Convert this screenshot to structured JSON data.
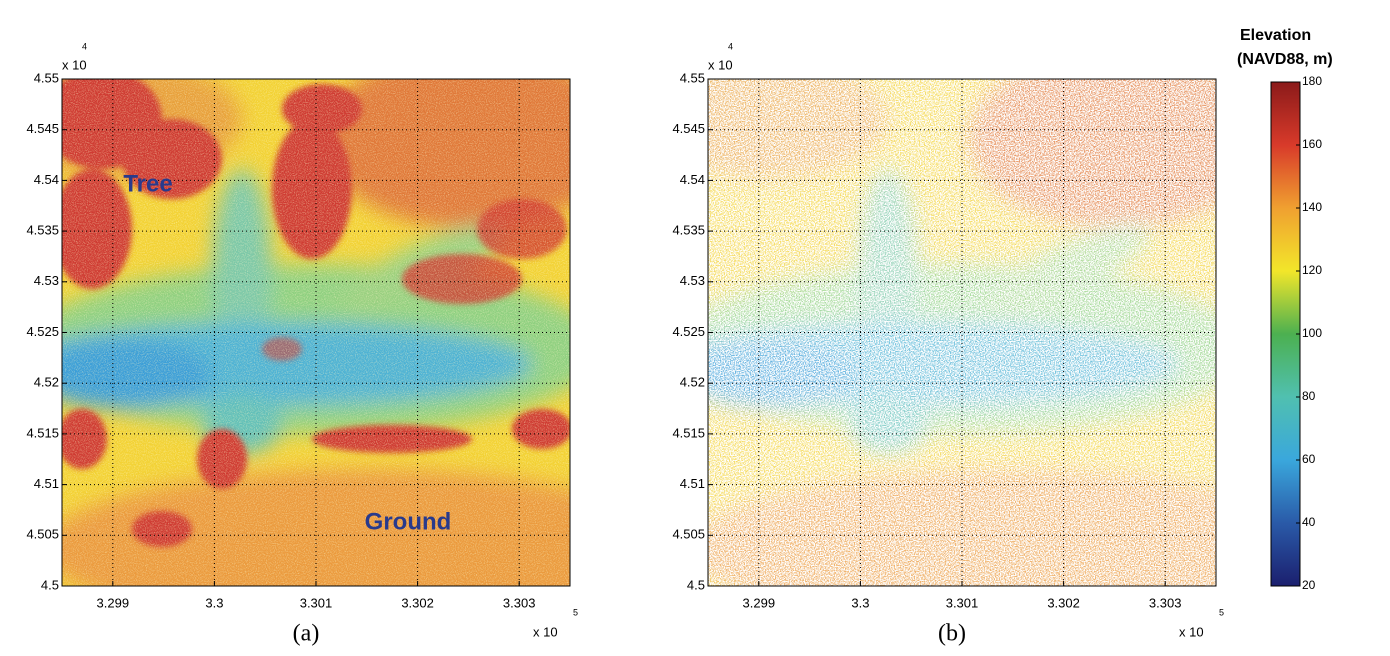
{
  "chart_data": [
    {
      "type": "heatmap",
      "panel_label": "(a)",
      "annotations": [
        "Tree",
        "Ground"
      ],
      "xlim": [
        3.2985,
        3.3035
      ],
      "xticks": [
        3.299,
        3.3,
        3.301,
        3.302,
        3.303
      ],
      "x_multiplier": "x 10",
      "x_exponent": "5",
      "ylim": [
        4.5,
        4.55
      ],
      "yticks": [
        4.5,
        4.505,
        4.51,
        4.515,
        4.52,
        4.525,
        4.53,
        4.535,
        4.54,
        4.545,
        4.55
      ],
      "y_multiplier": "x 10",
      "y_exponent": "4",
      "grid": true
    },
    {
      "type": "heatmap",
      "panel_label": "(b)",
      "annotations": [],
      "xlim": [
        3.2985,
        3.3035
      ],
      "xticks": [
        3.299,
        3.3,
        3.301,
        3.302,
        3.303
      ],
      "x_multiplier": "x 10",
      "x_exponent": "5",
      "ylim": [
        4.5,
        4.55
      ],
      "yticks": [
        4.5,
        4.505,
        4.51,
        4.515,
        4.52,
        4.525,
        4.53,
        4.535,
        4.54,
        4.545,
        4.55
      ],
      "y_multiplier": "x 10",
      "y_exponent": "4",
      "grid": true
    },
    {
      "type": "colorbar",
      "title": [
        "Elevation",
        "(NAVD88, m)"
      ],
      "clim": [
        20,
        180
      ],
      "ticks": [
        20,
        40,
        60,
        80,
        100,
        120,
        140,
        160,
        180
      ],
      "colormap": [
        "#1b1f6e",
        "#2a5aa8",
        "#3aa7dc",
        "#50c0b0",
        "#4cb050",
        "#f2e62a",
        "#f0a030",
        "#d83a2a",
        "#8b1a1a"
      ]
    }
  ]
}
